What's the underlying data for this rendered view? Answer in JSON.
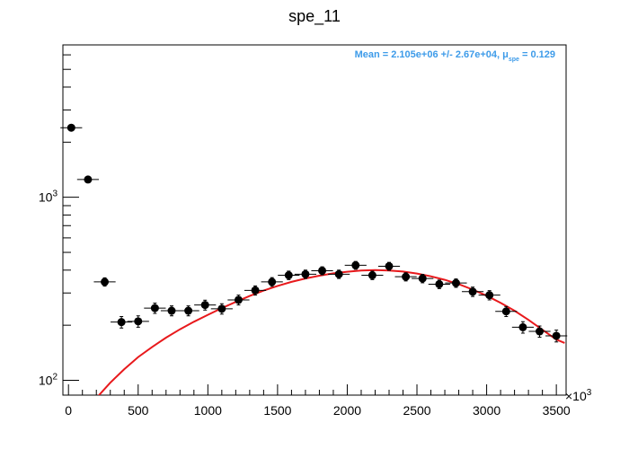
{
  "chart_data": {
    "type": "scatter",
    "title": "spe_11",
    "xlabel": "",
    "ylabel": "",
    "x_multiplier_label": "×10",
    "x_multiplier_exp": "3",
    "xlim": [
      -40,
      3570
    ],
    "ylog": true,
    "ylim": [
      83,
      6800
    ],
    "x_ticks": [
      0,
      500,
      1000,
      1500,
      2000,
      2500,
      3000,
      3500
    ],
    "x_tick_labels": [
      "0",
      "500",
      "1000",
      "1500",
      "2000",
      "2500",
      "3000",
      "3500"
    ],
    "y_major_ticks": [
      100,
      1000
    ],
    "y_tick_labels": [
      {
        "base": "10",
        "exp": "2"
      },
      {
        "base": "10",
        "exp": "3"
      }
    ],
    "y_minor_ticks": [
      200,
      300,
      400,
      500,
      600,
      700,
      800,
      900,
      2000,
      3000,
      4000,
      5000,
      6000
    ],
    "grid": false,
    "annotation": {
      "text_before": "Mean = 2.105e+06 +/- 2.67e+04, μ",
      "subscript": "spe",
      "text_after": " = 0.129",
      "color": "#3d9be9"
    },
    "points": {
      "name": "",
      "color": "#000000",
      "x_half_width": 78,
      "x": [
        20,
        140,
        260,
        380,
        500,
        620,
        740,
        860,
        980,
        1100,
        1220,
        1340,
        1460,
        1580,
        1700,
        1820,
        1940,
        2060,
        2180,
        2300,
        2420,
        2540,
        2660,
        2780,
        2900,
        3020,
        3140,
        3260,
        3380,
        3500
      ],
      "y": [
        2400,
        1250,
        345,
        208,
        210,
        248,
        240,
        240,
        258,
        246,
        275,
        310,
        345,
        375,
        380,
        397,
        380,
        425,
        375,
        420,
        368,
        360,
        335,
        340,
        305,
        292,
        238,
        195,
        185,
        175
      ],
      "y_err": [
        50,
        35,
        18,
        15,
        15,
        16,
        15,
        15,
        16,
        16,
        17,
        18,
        19,
        20,
        20,
        20,
        20,
        21,
        20,
        21,
        19,
        19,
        18,
        18,
        18,
        17,
        15,
        14,
        13,
        13
      ]
    },
    "fit": {
      "name": "",
      "color": "#e8191c",
      "x": [
        200,
        300,
        400,
        500,
        600,
        700,
        800,
        900,
        1000,
        1100,
        1200,
        1300,
        1400,
        1500,
        1600,
        1700,
        1800,
        1900,
        2000,
        2100,
        2200,
        2300,
        2400,
        2500,
        2600,
        2700,
        2800,
        2900,
        3000,
        3100,
        3200,
        3300,
        3400,
        3500,
        3560
      ],
      "y": [
        80,
        97,
        115,
        134,
        152,
        171,
        190,
        209,
        228,
        248,
        268,
        289,
        309,
        328,
        345,
        360,
        373,
        384,
        392,
        398,
        400,
        398,
        393,
        383,
        370,
        354,
        335,
        313,
        290,
        265,
        240,
        214,
        189,
        167,
        160
      ]
    }
  }
}
